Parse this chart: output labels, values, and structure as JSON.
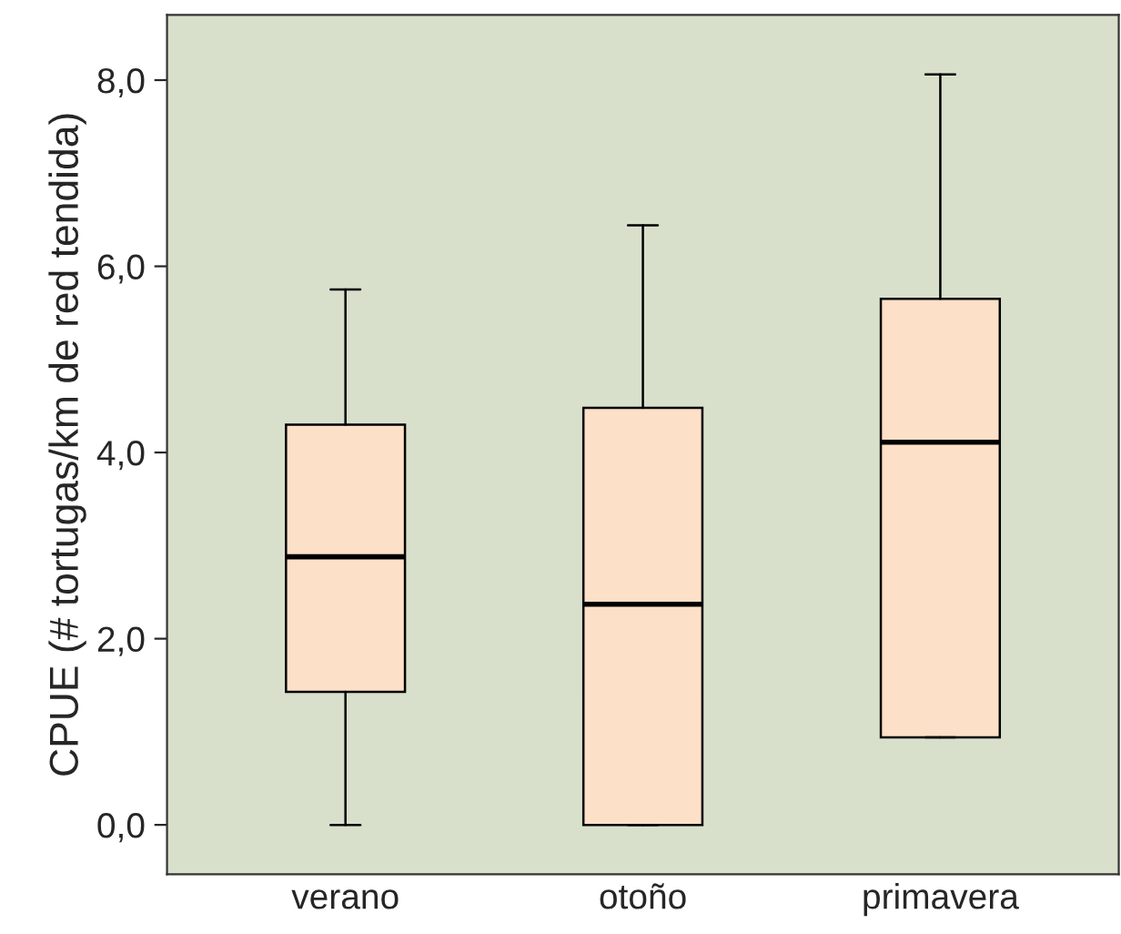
{
  "chart_data": {
    "type": "box",
    "ylabel": "CPUE (# tortugas/km de red tendida)",
    "categories": [
      "verano",
      "otoño",
      "primavera"
    ],
    "boxes": [
      {
        "low": 0,
        "q1": 1.43,
        "median": 2.88,
        "q3": 4.3,
        "high": 5.75
      },
      {
        "low": 0,
        "q1": 0,
        "median": 2.37,
        "q3": 4.48,
        "high": 6.44
      },
      {
        "low": 0.94,
        "q1": 0.94,
        "median": 4.11,
        "q3": 5.65,
        "high": 8.06
      }
    ],
    "color": "#fde0c8",
    "ylim": [
      -0.53,
      8.7
    ],
    "yticks": [
      {
        "value": 0,
        "label": "0,0"
      },
      {
        "value": 2,
        "label": "2,0"
      },
      {
        "value": 4,
        "label": "4,0"
      },
      {
        "value": 6,
        "label": "6,0"
      },
      {
        "value": 8,
        "label": "8,0"
      }
    ],
    "grid": false
  }
}
